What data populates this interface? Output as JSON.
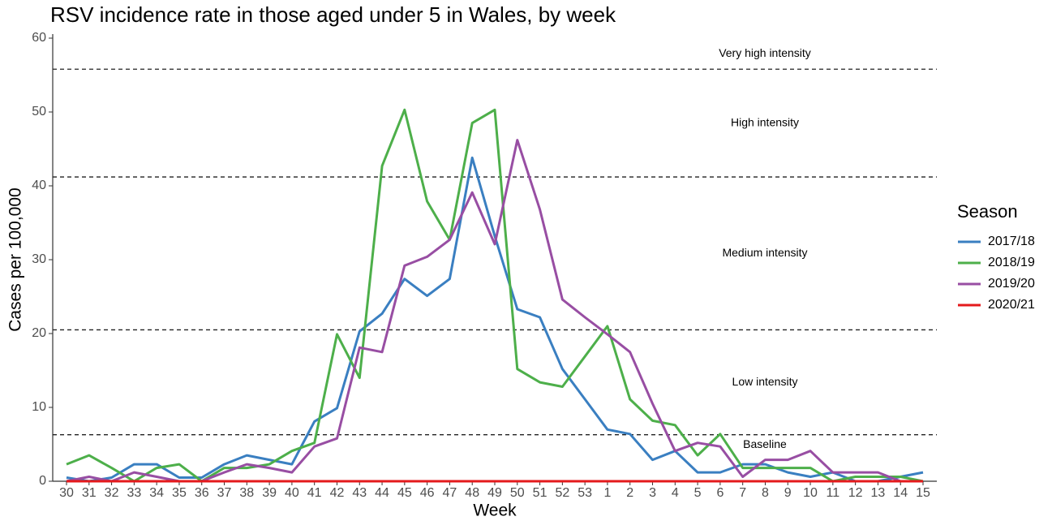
{
  "chart_data": {
    "type": "line",
    "title": "RSV incidence rate in those aged under 5 in Wales, by week",
    "x_label": "Week",
    "y_label": "Cases per 100,000",
    "categories": [
      "30",
      "31",
      "32",
      "33",
      "34",
      "35",
      "36",
      "37",
      "38",
      "39",
      "40",
      "41",
      "42",
      "43",
      "44",
      "45",
      "46",
      "47",
      "48",
      "49",
      "50",
      "51",
      "52",
      "53",
      "1",
      "2",
      "3",
      "4",
      "5",
      "6",
      "7",
      "8",
      "9",
      "10",
      "11",
      "12",
      "13",
      "14",
      "15"
    ],
    "ylim": [
      0,
      60
    ],
    "yticks": [
      0,
      10,
      20,
      30,
      40,
      50,
      60
    ],
    "thresholds": [
      6.3,
      20.5,
      41.2,
      55.8
    ],
    "zones": [
      "Baseline",
      "Low intensity",
      "Medium intensity",
      "High intensity",
      "Very high intensity"
    ],
    "legend_title": "Season",
    "series": [
      {
        "name": "2017/18",
        "color": "#3a7fc1",
        "values": [
          0.5,
          0,
          0.5,
          2.3,
          2.3,
          0.5,
          0.5,
          2.3,
          3.5,
          2.9,
          2.3,
          8.1,
          9.9,
          20.3,
          22.7,
          27.4,
          25.1,
          27.4,
          43.8,
          33.2,
          23.3,
          22.2,
          15.2,
          11.1,
          7.0,
          6.4,
          2.9,
          4.1,
          1.2,
          1.2,
          2.3,
          2.3,
          1.2,
          0.6,
          1.2,
          0,
          0,
          0.6,
          1.2
        ]
      },
      {
        "name": "2018/19",
        "color": "#4daf4a",
        "values": [
          2.3,
          3.5,
          1.8,
          0,
          1.8,
          2.3,
          0,
          1.8,
          1.8,
          2.3,
          4.1,
          5.2,
          19.9,
          14.0,
          42.7,
          50.3,
          37.9,
          32.7,
          48.5,
          50.3,
          15.2,
          13.4,
          12.8,
          16.9,
          21.0,
          11.1,
          8.2,
          7.6,
          3.5,
          6.4,
          1.8,
          1.8,
          1.8,
          1.8,
          0,
          0.6,
          0.6,
          0.6,
          0
        ]
      },
      {
        "name": "2019/20",
        "color": "#984ea3",
        "values": [
          0,
          0.6,
          0,
          1.2,
          0.6,
          0,
          0,
          1.2,
          2.3,
          1.8,
          1.2,
          4.7,
          5.8,
          18.1,
          17.5,
          29.2,
          30.4,
          32.7,
          39.1,
          32.1,
          46.2,
          36.8,
          24.6,
          22.2,
          19.9,
          17.5,
          10.5,
          4.1,
          5.2,
          4.7,
          0.6,
          2.9,
          2.9,
          4.1,
          1.2,
          1.2,
          1.2,
          0,
          null
        ]
      },
      {
        "name": "2020/21",
        "color": "#e41a1c",
        "values": [
          0,
          0,
          0,
          0,
          0,
          0,
          0,
          0,
          0,
          0,
          0,
          0,
          0,
          0,
          0,
          0,
          0,
          0,
          0,
          0,
          0,
          0,
          0,
          0,
          0,
          0,
          0,
          0,
          0,
          0,
          0,
          0,
          0,
          0,
          0,
          0,
          0,
          0,
          0
        ]
      }
    ]
  }
}
